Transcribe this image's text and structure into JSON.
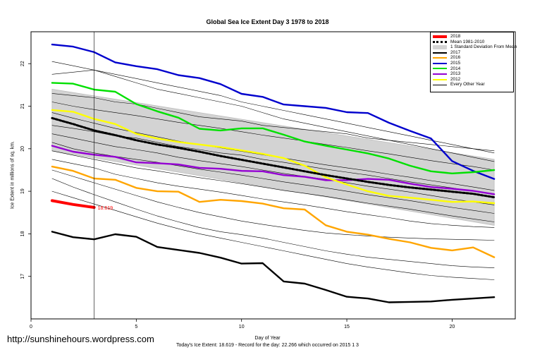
{
  "chart_data": {
    "type": "line",
    "title": "Global Sea Ice Extent Day 3 1978 to 2018",
    "xlabel": "Day of Year",
    "ylabel": "Ice Extent in millions of sq. km.",
    "xlim": [
      0,
      23
    ],
    "ylim": [
      16.0,
      22.75
    ],
    "xticks": [
      0,
      5,
      10,
      15,
      20
    ],
    "yticks": [
      17,
      18,
      19,
      20,
      21,
      22
    ],
    "current_day_marker": 3,
    "current_value_label": "18.619",
    "footer": "Today's Ice Extent: 18.619  - Record for the day: 22.266 which occurred on 2015 1 3",
    "legend": [
      {
        "label": "2018",
        "color": "#ff0000",
        "kind": "thick"
      },
      {
        "label": "Mean 1981-2010",
        "color": "#000000",
        "kind": "dotted"
      },
      {
        "label": "1 Standard Deviation From Mean",
        "color": "#d3d3d3",
        "kind": "box"
      },
      {
        "label": "2017",
        "color": "#000000",
        "kind": "line"
      },
      {
        "label": "2016",
        "color": "#ffa500",
        "kind": "line"
      },
      {
        "label": "2015",
        "color": "#0000cd",
        "kind": "line"
      },
      {
        "label": "2014",
        "color": "#00e000",
        "kind": "line"
      },
      {
        "label": "2013",
        "color": "#9400d3",
        "kind": "line"
      },
      {
        "label": "2012",
        "color": "#ffff00",
        "kind": "line"
      },
      {
        "label": "Every Other Year",
        "color": "#000000",
        "kind": "thin"
      }
    ],
    "std_band": {
      "x": [
        1,
        22
      ],
      "upper": [
        21.4,
        19.75
      ],
      "lower": [
        19.95,
        18.2
      ]
    },
    "series": [
      {
        "name": "Mean 1981-2010",
        "color": "#000000",
        "style": "dotted",
        "x": [
          1,
          2,
          3,
          4,
          5,
          6,
          7,
          8,
          9,
          10,
          11,
          12,
          13,
          14,
          15,
          16,
          17,
          18,
          19,
          20,
          21,
          22
        ],
        "values": [
          20.72,
          20.58,
          20.43,
          20.32,
          20.2,
          20.1,
          20.02,
          19.93,
          19.83,
          19.74,
          19.65,
          19.56,
          19.47,
          19.38,
          19.3,
          19.22,
          19.15,
          19.09,
          19.04,
          18.99,
          18.94,
          18.86
        ]
      },
      {
        "name": "2018",
        "color": "#ff0000",
        "style": "thick",
        "x": [
          1,
          2,
          3
        ],
        "values": [
          18.78,
          18.69,
          18.62
        ]
      },
      {
        "name": "2017",
        "color": "#000000",
        "style": "bold",
        "x": [
          1,
          2,
          3,
          4,
          5,
          6,
          7,
          8,
          9,
          10,
          11,
          12,
          13,
          14,
          15,
          16,
          17,
          18,
          19,
          20,
          21,
          22
        ],
        "values": [
          18.05,
          17.92,
          17.87,
          17.99,
          17.93,
          17.69,
          17.62,
          17.55,
          17.44,
          17.3,
          17.31,
          16.88,
          16.83,
          16.68,
          16.52,
          16.48,
          16.39,
          16.4,
          16.41,
          16.45,
          16.48,
          16.51
        ]
      },
      {
        "name": "2016",
        "color": "#ffa500",
        "style": "bold",
        "x": [
          1,
          2,
          3,
          4,
          5,
          6,
          7,
          8,
          9,
          10,
          11,
          12,
          13,
          14,
          15,
          16,
          17,
          18,
          19,
          20,
          21,
          22
        ],
        "values": [
          19.58,
          19.48,
          19.3,
          19.27,
          19.08,
          19.0,
          18.99,
          18.75,
          18.8,
          18.77,
          18.71,
          18.6,
          18.57,
          18.2,
          18.05,
          17.98,
          17.88,
          17.8,
          17.67,
          17.61,
          17.68,
          17.45
        ]
      },
      {
        "name": "2015",
        "color": "#0000cd",
        "style": "bold",
        "x": [
          1,
          2,
          3,
          4,
          5,
          6,
          7,
          8,
          9,
          10,
          11,
          12,
          13,
          14,
          15,
          16,
          17,
          18,
          19,
          20,
          21,
          22
        ],
        "values": [
          22.45,
          22.4,
          22.27,
          22.03,
          21.94,
          21.87,
          21.73,
          21.66,
          21.52,
          21.29,
          21.22,
          21.04,
          21.0,
          20.96,
          20.86,
          20.84,
          20.61,
          20.42,
          20.24,
          19.71,
          19.48,
          19.29
        ]
      },
      {
        "name": "2014",
        "color": "#00e000",
        "style": "bold",
        "x": [
          1,
          2,
          3,
          4,
          5,
          6,
          7,
          8,
          9,
          10,
          11,
          12,
          13,
          14,
          15,
          16,
          17,
          18,
          19,
          20,
          21,
          22
        ],
        "values": [
          21.55,
          21.53,
          21.39,
          21.34,
          21.05,
          20.88,
          20.73,
          20.47,
          20.43,
          20.48,
          20.48,
          20.33,
          20.17,
          20.07,
          19.98,
          19.89,
          19.77,
          19.6,
          19.47,
          19.42,
          19.45,
          19.5
        ]
      },
      {
        "name": "2013",
        "color": "#9400d3",
        "style": "bold",
        "x": [
          1,
          2,
          3,
          4,
          5,
          6,
          7,
          8,
          9,
          10,
          11,
          12,
          13,
          14,
          15,
          16,
          17,
          18,
          19,
          20,
          21,
          22
        ],
        "values": [
          20.07,
          19.93,
          19.86,
          19.81,
          19.68,
          19.66,
          19.63,
          19.55,
          19.53,
          19.48,
          19.47,
          19.38,
          19.34,
          19.26,
          19.26,
          19.29,
          19.27,
          19.18,
          19.1,
          19.06,
          19.01,
          18.93
        ]
      },
      {
        "name": "2012",
        "color": "#ffff00",
        "style": "bold",
        "x": [
          1,
          2,
          3,
          4,
          5,
          6,
          7,
          8,
          9,
          10,
          11,
          12,
          13,
          14,
          15,
          16,
          17,
          18,
          19,
          20,
          21,
          22
        ],
        "values": [
          20.91,
          20.87,
          20.7,
          20.58,
          20.35,
          20.24,
          20.16,
          20.1,
          20.04,
          19.96,
          19.88,
          19.78,
          19.6,
          19.33,
          19.16,
          19.0,
          18.89,
          18.85,
          18.8,
          18.75,
          18.76,
          18.72
        ]
      },
      {
        "name": "Every Other Year",
        "color": "#000000",
        "style": "thin",
        "x": [
          1,
          2,
          3,
          4,
          5,
          6,
          7,
          8,
          9,
          10,
          11,
          12,
          13,
          14,
          15,
          16,
          17,
          18,
          19,
          20,
          21,
          22
        ],
        "values": [
          22.05,
          21.95,
          21.85,
          21.75,
          21.65,
          21.55,
          21.45,
          21.35,
          21.25,
          21.1,
          21.0,
          20.9,
          20.8,
          20.7,
          20.6,
          20.5,
          20.4,
          20.3,
          20.2,
          20.1,
          20.0,
          19.9
        ]
      },
      {
        "name": "Every Other Year",
        "color": "#000000",
        "style": "thin",
        "x": [
          1,
          2,
          3,
          4,
          5,
          6,
          7,
          8,
          9,
          10,
          11,
          12,
          13,
          14,
          15,
          16,
          17,
          18,
          19,
          20,
          21,
          22
        ],
        "values": [
          21.75,
          21.8,
          21.85,
          21.7,
          21.55,
          21.4,
          21.3,
          21.2,
          21.1,
          21.0,
          20.85,
          20.7,
          20.6,
          20.5,
          20.4,
          20.3,
          20.2,
          20.1,
          20.0,
          19.9,
          19.8,
          19.7
        ]
      },
      {
        "name": "Every Other Year",
        "color": "#000000",
        "style": "thin",
        "x": [
          1,
          2,
          3,
          4,
          5,
          6,
          7,
          8,
          9,
          10,
          11,
          12,
          13,
          14,
          15,
          16,
          17,
          18,
          19,
          20,
          21,
          22
        ],
        "values": [
          21.3,
          21.25,
          21.2,
          21.1,
          21.05,
          20.95,
          20.85,
          20.75,
          20.7,
          20.65,
          20.55,
          20.5,
          20.45,
          20.4,
          20.35,
          20.25,
          20.2,
          20.15,
          20.1,
          20.05,
          20.0,
          19.95
        ]
      },
      {
        "name": "Every Other Year",
        "color": "#000000",
        "style": "thin",
        "x": [
          1,
          2,
          3,
          4,
          5,
          6,
          7,
          8,
          9,
          10,
          11,
          12,
          13,
          14,
          15,
          16,
          17,
          18,
          19,
          20,
          21,
          22
        ],
        "values": [
          21.1,
          21.0,
          20.92,
          20.85,
          20.78,
          20.7,
          20.62,
          20.55,
          20.48,
          20.4,
          20.32,
          20.25,
          20.18,
          20.1,
          20.03,
          19.95,
          19.88,
          19.8,
          19.72,
          19.65,
          19.58,
          19.5
        ]
      },
      {
        "name": "Every Other Year",
        "color": "#000000",
        "style": "thin",
        "x": [
          1,
          2,
          3,
          4,
          5,
          6,
          7,
          8,
          9,
          10,
          11,
          12,
          13,
          14,
          15,
          16,
          17,
          18,
          19,
          20,
          21,
          22
        ],
        "values": [
          20.85,
          20.72,
          20.6,
          20.48,
          20.38,
          20.28,
          20.18,
          20.1,
          20.02,
          19.94,
          19.86,
          19.78,
          19.7,
          19.62,
          19.55,
          19.48,
          19.4,
          19.33,
          19.25,
          19.18,
          19.1,
          19.02
        ]
      },
      {
        "name": "Every Other Year",
        "color": "#000000",
        "style": "thin",
        "x": [
          1,
          2,
          3,
          4,
          5,
          6,
          7,
          8,
          9,
          10,
          11,
          12,
          13,
          14,
          15,
          16,
          17,
          18,
          19,
          20,
          21,
          22
        ],
        "values": [
          20.55,
          20.48,
          20.4,
          20.3,
          20.25,
          20.15,
          20.05,
          19.98,
          19.9,
          19.85,
          19.75,
          19.68,
          19.6,
          19.52,
          19.45,
          19.38,
          19.3,
          19.22,
          19.15,
          19.08,
          19.0,
          18.92
        ]
      },
      {
        "name": "Every Other Year",
        "color": "#000000",
        "style": "thin",
        "x": [
          1,
          2,
          3,
          4,
          5,
          6,
          7,
          8,
          9,
          10,
          11,
          12,
          13,
          14,
          15,
          16,
          17,
          18,
          19,
          20,
          21,
          22
        ],
        "values": [
          20.35,
          20.25,
          20.15,
          20.05,
          19.98,
          19.9,
          19.8,
          19.72,
          19.65,
          19.58,
          19.5,
          19.42,
          19.35,
          19.28,
          19.2,
          19.12,
          19.05,
          18.98,
          18.9,
          18.82,
          18.75,
          18.68
        ]
      },
      {
        "name": "Every Other Year",
        "color": "#000000",
        "style": "thin",
        "x": [
          1,
          2,
          3,
          4,
          5,
          6,
          7,
          8,
          9,
          10,
          11,
          12,
          13,
          14,
          15,
          16,
          17,
          18,
          19,
          20,
          21,
          22
        ],
        "values": [
          20.15,
          20.0,
          19.9,
          19.82,
          19.75,
          19.68,
          19.6,
          19.52,
          19.45,
          19.38,
          19.3,
          19.22,
          19.15,
          19.08,
          19.0,
          18.92,
          18.85,
          18.78,
          18.7,
          18.62,
          18.55,
          18.48
        ]
      },
      {
        "name": "Every Other Year",
        "color": "#000000",
        "style": "thin",
        "x": [
          1,
          2,
          3,
          4,
          5,
          6,
          7,
          8,
          9,
          10,
          11,
          12,
          13,
          14,
          15,
          16,
          17,
          18,
          19,
          20,
          21,
          22
        ],
        "values": [
          19.95,
          19.85,
          19.75,
          19.65,
          19.55,
          19.48,
          19.4,
          19.32,
          19.25,
          19.18,
          19.1,
          19.02,
          18.95,
          18.88,
          18.8,
          18.72,
          18.65,
          18.58,
          18.5,
          18.42,
          18.35,
          18.28
        ]
      },
      {
        "name": "Every Other Year",
        "color": "#000000",
        "style": "thin",
        "x": [
          1,
          2,
          3,
          4,
          5,
          6,
          7,
          8,
          9,
          10,
          11,
          12,
          13,
          14,
          15,
          16,
          17,
          18,
          19,
          20,
          21,
          22
        ],
        "values": [
          19.75,
          19.65,
          19.55,
          19.4,
          19.3,
          19.2,
          19.12,
          19.05,
          18.98,
          18.9,
          18.82,
          18.75,
          18.68,
          18.6,
          18.52,
          18.45,
          18.38,
          18.3,
          18.24,
          18.2,
          18.17,
          18.15
        ]
      },
      {
        "name": "Every Other Year",
        "color": "#000000",
        "style": "thin",
        "x": [
          1,
          2,
          3,
          4,
          5,
          6,
          7,
          8,
          9,
          10,
          11,
          12,
          13,
          14,
          15,
          16,
          17,
          18,
          19,
          20,
          21,
          22
        ],
        "values": [
          19.5,
          19.35,
          19.2,
          19.05,
          18.9,
          18.75,
          18.62,
          18.5,
          18.4,
          18.3,
          18.22,
          18.15,
          18.08,
          18.02,
          17.98,
          17.95,
          17.92,
          17.9,
          17.88,
          17.87,
          17.86,
          17.85
        ]
      },
      {
        "name": "Every Other Year",
        "color": "#000000",
        "style": "thin",
        "x": [
          1,
          2,
          3,
          4,
          5,
          6,
          7,
          8,
          9,
          10,
          11,
          12,
          13,
          14,
          15,
          16,
          17,
          18,
          19,
          20,
          21,
          22
        ],
        "values": [
          19.3,
          19.1,
          18.92,
          18.75,
          18.58,
          18.42,
          18.28,
          18.15,
          18.05,
          17.98,
          17.9,
          17.8,
          17.7,
          17.6,
          17.52,
          17.45,
          17.4,
          17.35,
          17.3,
          17.25,
          17.22,
          17.2
        ]
      },
      {
        "name": "Every Other Year",
        "color": "#000000",
        "style": "thin",
        "x": [
          1,
          2,
          3,
          4,
          5,
          6,
          7,
          8,
          9,
          10,
          11,
          12,
          13,
          14,
          15,
          16,
          17,
          18,
          19,
          20,
          21,
          22
        ],
        "values": [
          19.0,
          18.85,
          18.7,
          18.55,
          18.4,
          18.25,
          18.12,
          18.0,
          17.9,
          17.8,
          17.7,
          17.6,
          17.5,
          17.4,
          17.3,
          17.22,
          17.15,
          17.08,
          17.02,
          16.98,
          16.95,
          16.92
        ]
      }
    ]
  }
}
